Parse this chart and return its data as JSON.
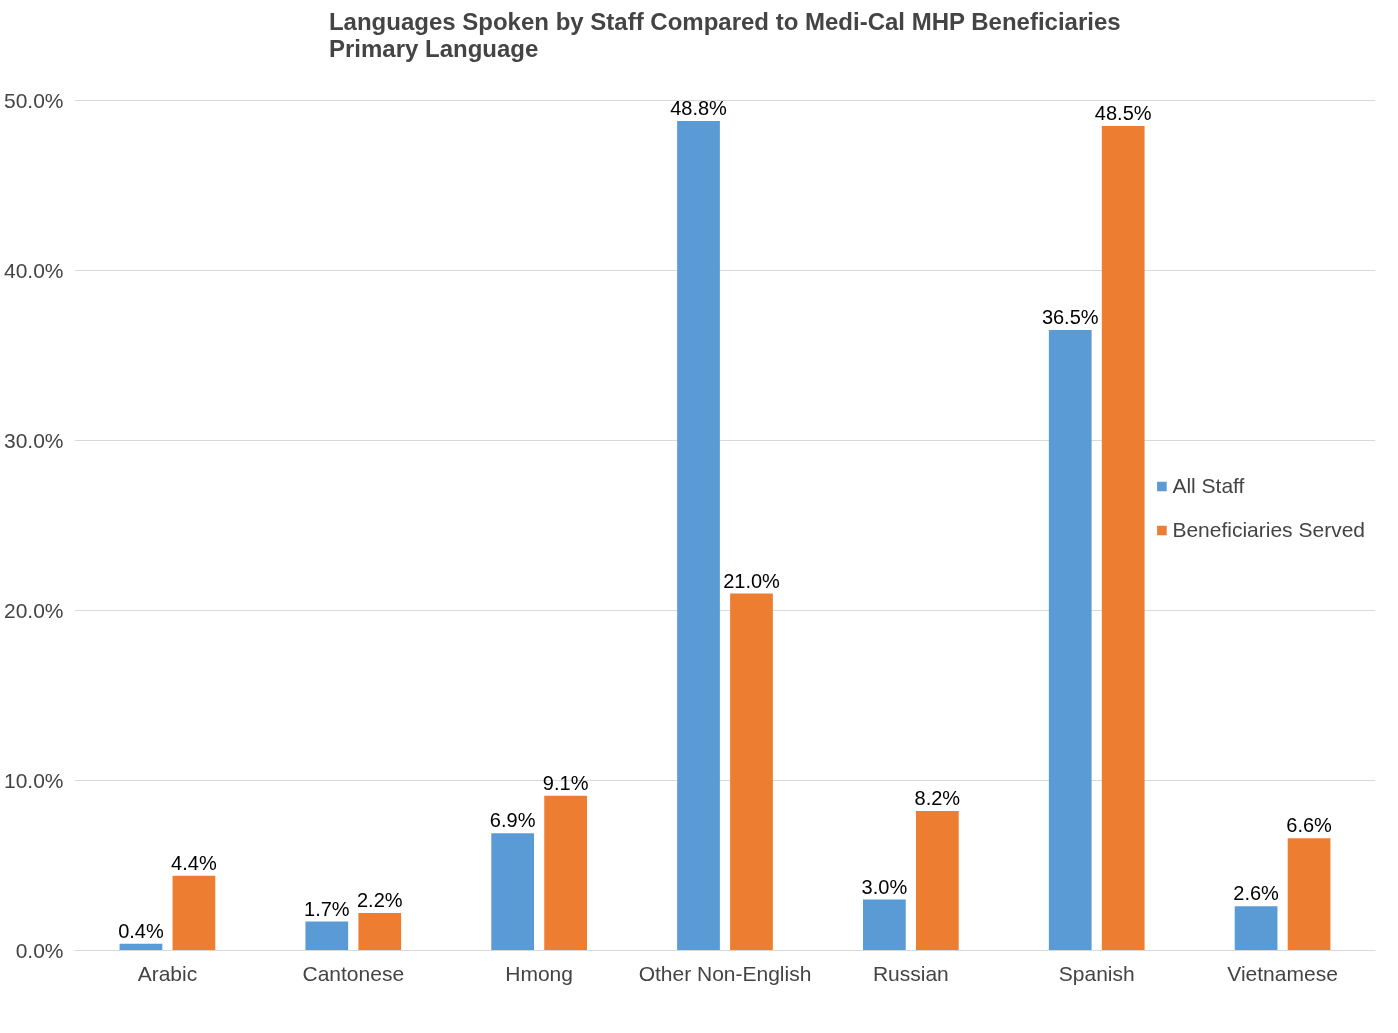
{
  "chart_data": {
    "type": "bar",
    "title": "Languages Spoken by Staff Compared to Medi-Cal MHP Beneficiaries Primary Language",
    "categories": [
      "Arabic",
      "Cantonese",
      "Hmong",
      "Other Non-English",
      "Russian",
      "Spanish",
      "Vietnamese"
    ],
    "series": [
      {
        "name": "All Staff",
        "color": "#5b9bd5",
        "values": [
          0.4,
          1.7,
          6.9,
          48.8,
          3.0,
          36.5,
          2.6
        ],
        "value_labels": [
          "0.4%",
          "1.7%",
          "6.9%",
          "48.8%",
          "3.0%",
          "36.5%",
          "2.6%"
        ]
      },
      {
        "name": "Beneficiaries Served",
        "color": "#ed7d31",
        "values": [
          4.4,
          2.2,
          9.1,
          21.0,
          8.2,
          48.5,
          6.6
        ],
        "value_labels": [
          "4.4%",
          "2.2%",
          "9.1%",
          "21.0%",
          "8.2%",
          "48.5%",
          "6.6%"
        ]
      }
    ],
    "ylim": [
      0,
      50
    ],
    "yticks": [
      {
        "value": 0,
        "label": "0.0%"
      },
      {
        "value": 10,
        "label": "10.0%"
      },
      {
        "value": 20,
        "label": "20.0%"
      },
      {
        "value": 30,
        "label": "30.0%"
      },
      {
        "value": 40,
        "label": "40.0%"
      },
      {
        "value": 50,
        "label": "50.0%"
      }
    ],
    "grid": "y",
    "legend": "center right"
  }
}
